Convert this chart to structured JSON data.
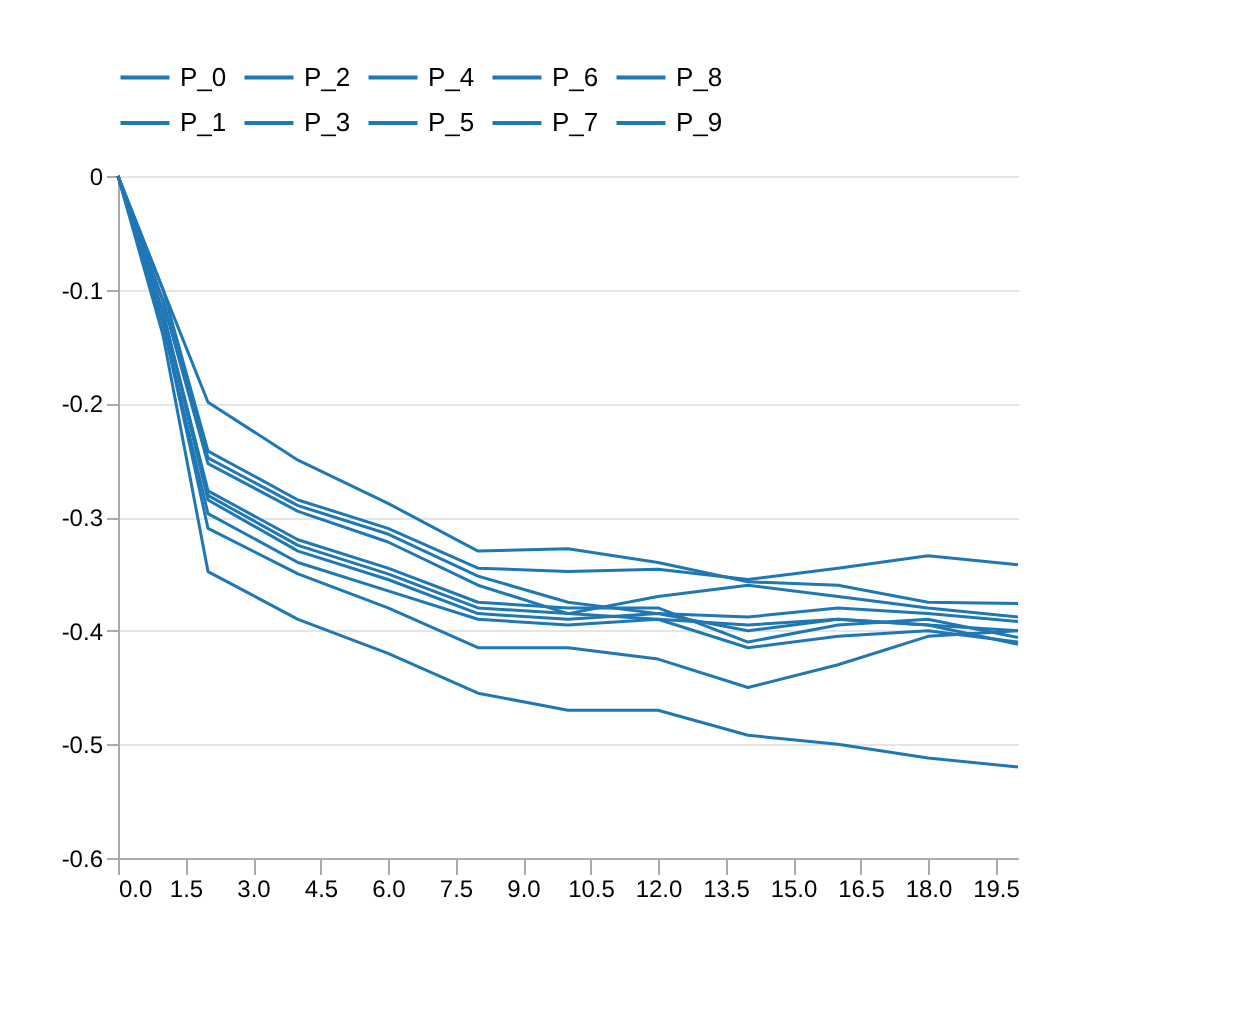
{
  "chart_data": {
    "type": "line",
    "x": [
      0,
      1,
      2,
      4,
      6,
      8,
      10,
      12,
      14,
      16,
      18,
      20
    ],
    "series": [
      {
        "name": "P_0",
        "color": "#1f77b4",
        "values": [
          0,
          -0.1,
          -0.199,
          -0.25,
          -0.288,
          -0.33,
          -0.328,
          -0.34,
          -0.357,
          -0.36,
          -0.375,
          -0.376
        ]
      },
      {
        "name": "P_1",
        "color": "#1f77b4",
        "values": [
          0,
          -0.1,
          -0.242,
          -0.285,
          -0.31,
          -0.345,
          -0.348,
          -0.346,
          -0.355,
          -0.345,
          -0.334,
          -0.342
        ]
      },
      {
        "name": "P_2",
        "color": "#1f77b4",
        "values": [
          0,
          -0.11,
          -0.248,
          -0.29,
          -0.315,
          -0.352,
          -0.375,
          -0.385,
          -0.388,
          -0.38,
          -0.385,
          -0.392
        ]
      },
      {
        "name": "P_3",
        "color": "#1f77b4",
        "values": [
          0,
          -0.11,
          -0.253,
          -0.295,
          -0.322,
          -0.36,
          -0.385,
          -0.37,
          -0.36,
          -0.37,
          -0.38,
          -0.388
        ]
      },
      {
        "name": "P_4",
        "color": "#1f77b4",
        "values": [
          0,
          -0.12,
          -0.277,
          -0.32,
          -0.345,
          -0.375,
          -0.38,
          -0.38,
          -0.41,
          -0.395,
          -0.39,
          -0.406
        ]
      },
      {
        "name": "P_5",
        "color": "#1f77b4",
        "values": [
          0,
          -0.12,
          -0.281,
          -0.325,
          -0.35,
          -0.38,
          -0.385,
          -0.39,
          -0.415,
          -0.405,
          -0.4,
          -0.41
        ]
      },
      {
        "name": "P_6",
        "color": "#1f77b4",
        "values": [
          0,
          -0.12,
          -0.285,
          -0.33,
          -0.355,
          -0.385,
          -0.39,
          -0.385,
          -0.4,
          -0.39,
          -0.395,
          -0.412
        ]
      },
      {
        "name": "P_7",
        "color": "#1f77b4",
        "values": [
          0,
          -0.13,
          -0.297,
          -0.34,
          -0.365,
          -0.39,
          -0.395,
          -0.39,
          -0.395,
          -0.39,
          -0.395,
          -0.4
        ]
      },
      {
        "name": "P_8",
        "color": "#1f77b4",
        "values": [
          0,
          -0.13,
          -0.31,
          -0.35,
          -0.38,
          -0.415,
          -0.415,
          -0.425,
          -0.45,
          -0.43,
          -0.405,
          -0.4
        ]
      },
      {
        "name": "P_9",
        "color": "#1f77b4",
        "values": [
          0,
          -0.14,
          -0.348,
          -0.39,
          -0.42,
          -0.455,
          -0.47,
          -0.47,
          -0.492,
          -0.5,
          -0.512,
          -0.52
        ]
      }
    ],
    "xlim": [
      0,
      20
    ],
    "xticks": [
      {
        "value": 0,
        "label": "0.0"
      },
      {
        "value": 1.5,
        "label": "1.5"
      },
      {
        "value": 3,
        "label": "3.0"
      },
      {
        "value": 4.5,
        "label": "4.5"
      },
      {
        "value": 6,
        "label": "6.0"
      },
      {
        "value": 7.5,
        "label": "7.5"
      },
      {
        "value": 9,
        "label": "9.0"
      },
      {
        "value": 10.5,
        "label": "10.5"
      },
      {
        "value": 12,
        "label": "12.0"
      },
      {
        "value": 13.5,
        "label": "13.5"
      },
      {
        "value": 15,
        "label": "15.0"
      },
      {
        "value": 16.5,
        "label": "16.5"
      },
      {
        "value": 18,
        "label": "18.0"
      },
      {
        "value": 19.5,
        "label": "19.5"
      }
    ],
    "ylim": [
      -0.6,
      0
    ],
    "yticks": [
      -0.6,
      -0.5,
      -0.4,
      -0.3,
      -0.2,
      -0.1,
      0
    ],
    "grid": "y",
    "legend": "top",
    "marker": "none",
    "line_style": "solid"
  }
}
